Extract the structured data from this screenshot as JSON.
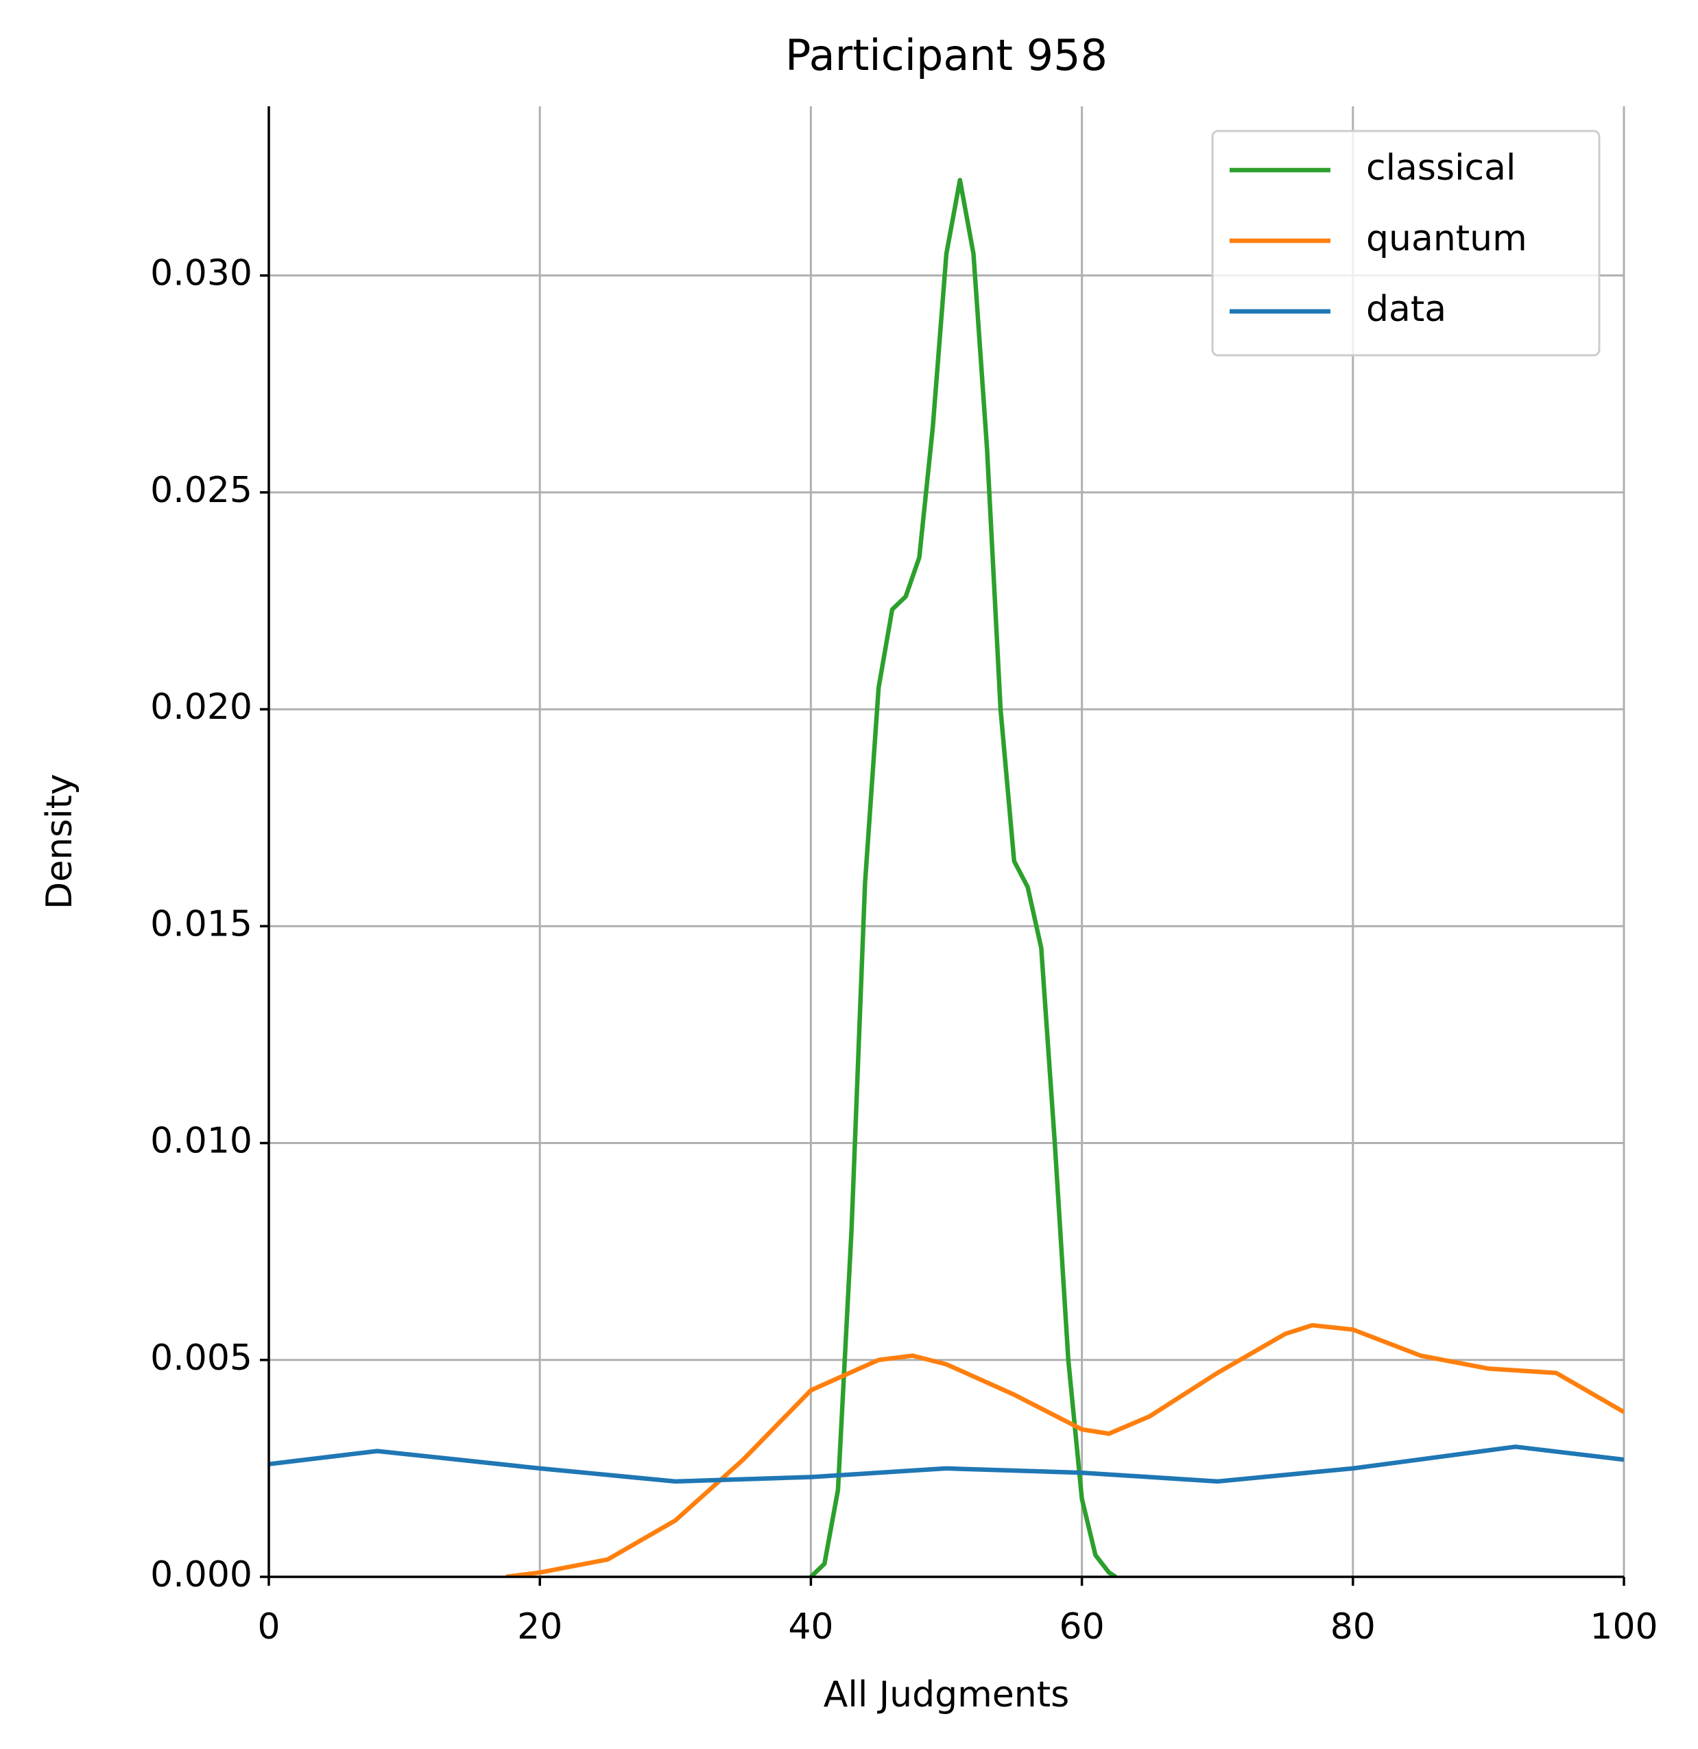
{
  "chart_data": {
    "type": "line",
    "title": "Participant 958",
    "x_label": "All Judgments",
    "y_label": "Density",
    "series": [
      {
        "name": "classical",
        "color": "#2ca02c",
        "x": [
          40,
          41,
          42,
          43,
          44,
          45,
          46,
          47,
          48,
          49,
          50,
          51,
          52,
          53,
          54,
          55,
          56,
          57,
          58,
          59,
          60,
          61,
          62,
          62.5
        ],
        "values": [
          0.0,
          0.0003,
          0.002,
          0.008,
          0.016,
          0.0205,
          0.0223,
          0.0226,
          0.0235,
          0.0265,
          0.0305,
          0.0322,
          0.0305,
          0.026,
          0.02,
          0.0165,
          0.0159,
          0.0145,
          0.01,
          0.005,
          0.0018,
          0.0005,
          0.0001,
          0.0
        ]
      },
      {
        "name": "quantum",
        "color": "#ff7f0e",
        "x": [
          17.5,
          20,
          25,
          30,
          35,
          40,
          45,
          47.5,
          50,
          55,
          60,
          62,
          65,
          70,
          75,
          77,
          80,
          85,
          90,
          95,
          100
        ],
        "values": [
          0.0,
          0.0001,
          0.0004,
          0.0013,
          0.0027,
          0.0043,
          0.005,
          0.0051,
          0.0049,
          0.0042,
          0.0034,
          0.0033,
          0.0037,
          0.0047,
          0.0056,
          0.0058,
          0.0057,
          0.0051,
          0.0048,
          0.0047,
          0.0038
        ]
      },
      {
        "name": "data",
        "color": "#1f77b4",
        "x": [
          0,
          8,
          20,
          30,
          40,
          50,
          60,
          70,
          80,
          92,
          100
        ],
        "values": [
          0.0026,
          0.0029,
          0.0025,
          0.0022,
          0.0023,
          0.0025,
          0.0024,
          0.0022,
          0.0025,
          0.003,
          0.0027
        ]
      }
    ],
    "xlim": [
      0,
      100
    ],
    "xticks": [
      0,
      20,
      40,
      60,
      80,
      100
    ],
    "ylim": [
      0,
      0.0339
    ],
    "yticks": [
      {
        "value": 0,
        "label": "0.000"
      },
      {
        "value": 0.005,
        "label": "0.005"
      },
      {
        "value": 0.01,
        "label": "0.010"
      },
      {
        "value": 0.015,
        "label": "0.015"
      },
      {
        "value": 0.02,
        "label": "0.020"
      },
      {
        "value": 0.025,
        "label": "0.025"
      },
      {
        "value": 0.03,
        "label": "0.030"
      }
    ],
    "grid": true,
    "legend": "upper right"
  }
}
